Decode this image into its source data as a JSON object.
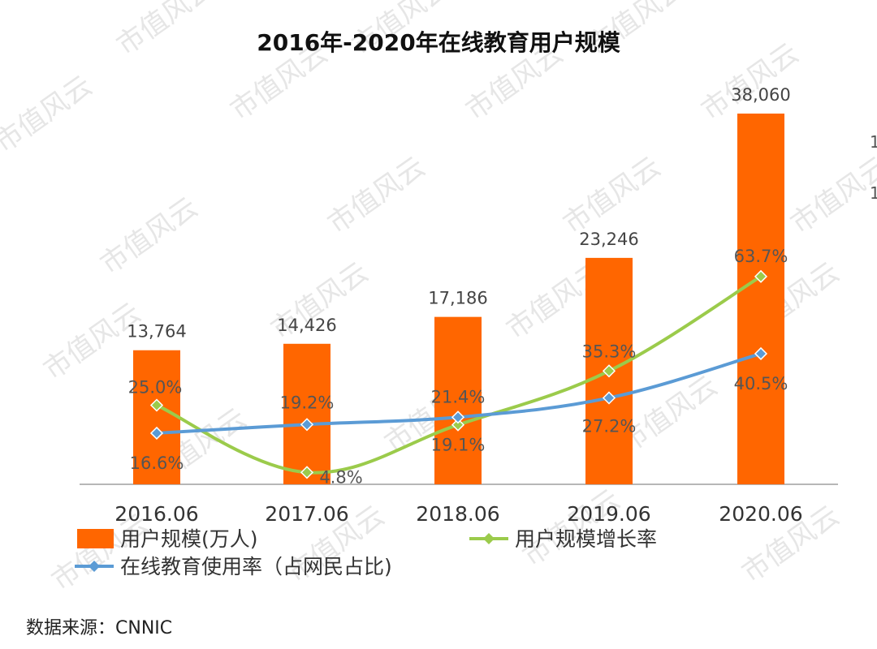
{
  "chart_data": {
    "type": "bar",
    "title": "2016年-2020年在线教育用户规模",
    "categories": [
      "2016.06",
      "2017.06",
      "2018.06",
      "2019.06",
      "2020.06"
    ],
    "series": [
      {
        "name": "用户规模(万人)",
        "kind": "bar",
        "color": "#ff6600",
        "values": [
          13764,
          14426,
          17186,
          23246,
          38060
        ],
        "labels": [
          "13,764",
          "14,426",
          "17,186",
          "23,246",
          "38,060"
        ]
      },
      {
        "name": "用户规模增长率",
        "kind": "line",
        "color": "#9bcb4b",
        "values": [
          25.0,
          4.8,
          19.1,
          35.3,
          63.7
        ],
        "labels": [
          "25.0%",
          "4.8%",
          "19.1%",
          "35.3%",
          "63.7%"
        ]
      },
      {
        "name": "在线教育使用率（占网民占比)",
        "kind": "line",
        "color": "#5b9bd5",
        "values": [
          16.6,
          19.2,
          21.4,
          27.2,
          40.5
        ],
        "labels": [
          "16.6%",
          "19.2%",
          "21.4%",
          "27.2%",
          "40.5%"
        ]
      }
    ],
    "ylim_bar": [
      0,
      40000
    ],
    "legend_placement": "bottom",
    "grid": false
  },
  "source": "数据来源：CNNIC",
  "watermark": "市值风云",
  "edge_glyphs": [
    "1",
    "1"
  ]
}
